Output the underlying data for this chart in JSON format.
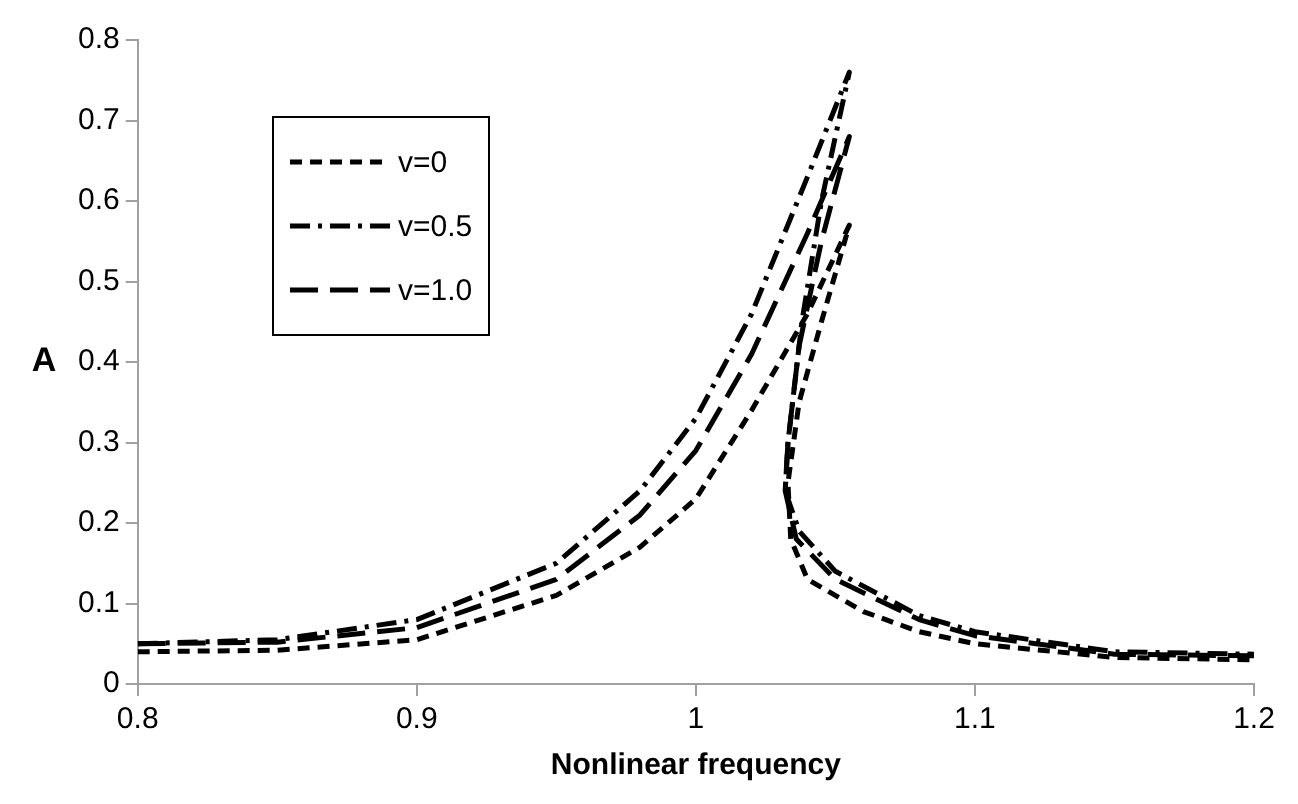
{
  "chart_data": {
    "type": "line",
    "xlabel": "Nonlinear frequency",
    "ylabel": "A",
    "xlim": [
      0.8,
      1.2
    ],
    "xticks": [
      0.8,
      0.9,
      1,
      1.1,
      1.2
    ],
    "ylim": [
      0,
      0.8
    ],
    "yticks": [
      0,
      0.1,
      0.2,
      0.3,
      0.4,
      0.5,
      0.6,
      0.7,
      0.8
    ],
    "grid": false,
    "legend": "top left",
    "marker": "none",
    "series": [
      {
        "name": "v=0",
        "color": "#000000",
        "line_style": "dashed",
        "x": [
          0.8,
          0.85,
          0.9,
          0.95,
          0.98,
          1.0,
          1.02,
          1.04,
          1.055,
          1.045,
          1.037,
          1.033,
          1.034,
          1.04,
          1.06,
          1.08,
          1.1,
          1.15,
          1.2
        ],
        "values": [
          0.04,
          0.042,
          0.055,
          0.11,
          0.17,
          0.23,
          0.34,
          0.46,
          0.57,
          0.45,
          0.35,
          0.25,
          0.18,
          0.13,
          0.09,
          0.065,
          0.05,
          0.033,
          0.03
        ]
      },
      {
        "name": "v=0.5",
        "color": "#000000",
        "line_style": "dashdot",
        "x": [
          0.8,
          0.85,
          0.9,
          0.95,
          0.98,
          1.0,
          1.02,
          1.04,
          1.055,
          1.045,
          1.038,
          1.033,
          1.032,
          1.037,
          1.05,
          1.08,
          1.1,
          1.15,
          1.2
        ],
        "values": [
          0.05,
          0.055,
          0.08,
          0.15,
          0.24,
          0.33,
          0.46,
          0.63,
          0.76,
          0.6,
          0.45,
          0.3,
          0.24,
          0.19,
          0.14,
          0.085,
          0.065,
          0.04,
          0.037
        ]
      },
      {
        "name": "v=1.0",
        "color": "#000000",
        "line_style": "longdash",
        "x": [
          0.8,
          0.85,
          0.9,
          0.95,
          0.98,
          1.0,
          1.02,
          1.04,
          1.055,
          1.045,
          1.037,
          1.033,
          1.032,
          1.036,
          1.05,
          1.08,
          1.1,
          1.15,
          1.2
        ],
        "values": [
          0.05,
          0.052,
          0.07,
          0.13,
          0.21,
          0.29,
          0.41,
          0.56,
          0.68,
          0.55,
          0.42,
          0.3,
          0.24,
          0.18,
          0.13,
          0.08,
          0.06,
          0.037,
          0.035
        ]
      }
    ]
  }
}
